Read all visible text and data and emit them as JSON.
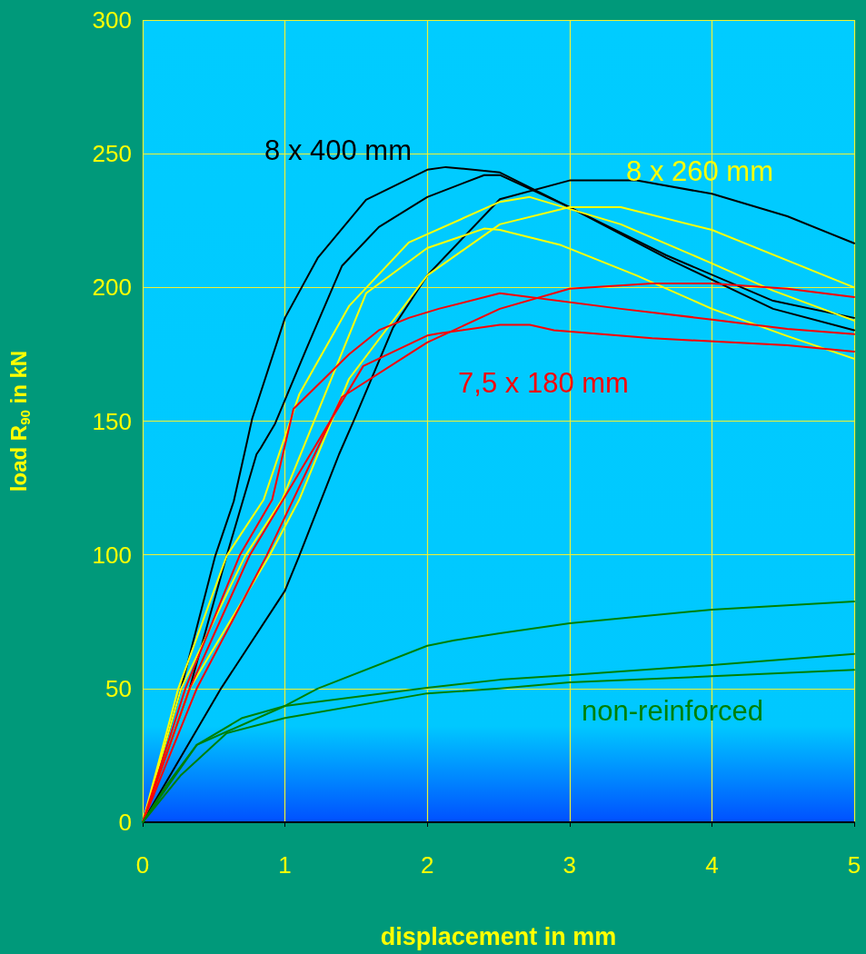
{
  "chart_data": {
    "type": "line",
    "xlabel": "displacement in mm",
    "ylabel": "load R$_{90}$ in kN",
    "xlim": [
      0,
      5
    ],
    "ylim": [
      0,
      300
    ],
    "xticks": [
      0,
      1,
      2,
      3,
      4,
      5
    ],
    "yticks": [
      0,
      50,
      100,
      150,
      200,
      250,
      300
    ],
    "grid": true,
    "marker": "none",
    "line_style": "solid",
    "series": [
      {
        "name": "8 x 400 mm",
        "color": "#000000",
        "x": [
          0,
          0.27,
          0.51,
          0.64,
          0.77,
          1.0,
          1.23,
          1.57,
          2.0,
          2.13,
          2.51,
          3.0,
          3.68,
          4.43,
          5.0
        ],
        "values": [
          0,
          50,
          99.6,
          120,
          151,
          188.6,
          211,
          232.8,
          244,
          245,
          243,
          230,
          212,
          195,
          188.6
        ]
      },
      {
        "color": "#000000",
        "x": [
          0,
          0.33,
          0.59,
          0.8,
          0.83,
          0.93,
          1.15,
          1.4,
          1.66,
          2.0,
          2.4,
          2.51,
          3.0,
          3.68,
          4.43,
          5.0
        ],
        "values": [
          0,
          50,
          99.6,
          137.6,
          140,
          149,
          177,
          208,
          222.6,
          233.8,
          242,
          242,
          230,
          211,
          192,
          184
        ]
      },
      {
        "color": "#000000",
        "x": [
          0,
          0.55,
          1.0,
          1.1,
          1.38,
          1.49,
          1.76,
          2.0,
          2.51,
          3.0,
          3.47,
          4.0,
          4.53,
          5.0
        ],
        "values": [
          0,
          50,
          86.6,
          99.6,
          137.6,
          151,
          185,
          204.5,
          233,
          240,
          240,
          235,
          226.6,
          216.5
        ]
      },
      {
        "name": "8 x 260 mm",
        "color": "#ffff00",
        "x": [
          0,
          0.25,
          0.59,
          0.85,
          1.1,
          1.45,
          1.87,
          2.51,
          2.72,
          3.36,
          4.0,
          4.43,
          5.0
        ],
        "values": [
          0,
          50,
          99.6,
          120.6,
          160,
          193,
          216.8,
          232,
          233.8,
          223.6,
          209,
          198.8,
          187.6
        ]
      },
      {
        "color": "#ffff00",
        "x": [
          0,
          0.33,
          0.89,
          1.1,
          1.45,
          2.0,
          2.51,
          3.0,
          3.36,
          4.0,
          5.0
        ],
        "values": [
          0,
          50,
          99.6,
          120.6,
          165.8,
          204.5,
          223.6,
          230,
          230,
          221.5,
          200
        ]
      },
      {
        "color": "#ffff00",
        "x": [
          0,
          0.27,
          0.72,
          0.98,
          1.57,
          2.0,
          2.4,
          2.51,
          2.94,
          3.47,
          4.0,
          4.53,
          5.0
        ],
        "values": [
          0,
          50,
          99.6,
          120.6,
          197.8,
          214.7,
          222,
          221.5,
          215.8,
          204.5,
          192,
          181.8,
          173.3
        ]
      },
      {
        "name": "7,5 x 180 mm",
        "color": "#ff0000",
        "x": [
          0,
          0.3,
          0.68,
          0.91,
          1.06,
          1.45,
          1.66,
          1.87,
          2.08,
          2.51,
          3.36,
          4.0,
          4.53,
          5.0
        ],
        "values": [
          0,
          50,
          99.6,
          120.6,
          154.6,
          175,
          184,
          188.6,
          192,
          197.8,
          192,
          188,
          184.5,
          182.5
        ]
      },
      {
        "color": "#ff0000",
        "x": [
          0,
          0.38,
          0.87,
          1.4,
          1.87,
          2.0,
          2.51,
          3.0,
          3.58,
          4.0,
          4.53,
          5.0
        ],
        "values": [
          0,
          50,
          99.6,
          159,
          175,
          179.4,
          192,
          199.5,
          201.5,
          201.5,
          199.5,
          196.4
        ]
      },
      {
        "color": "#ff0000",
        "x": [
          0,
          0.33,
          0.75,
          1.55,
          2.0,
          2.08,
          2.51,
          2.72,
          2.89,
          3.58,
          4.53,
          5.0
        ],
        "values": [
          0,
          50,
          99.6,
          170.6,
          182,
          182.8,
          186,
          186,
          184,
          181,
          178.4,
          176
        ]
      },
      {
        "name": "non-reinforced",
        "color": "#008000",
        "x": [
          0,
          0.38,
          1.0,
          1.23,
          2.0,
          2.19,
          2.51,
          3.0,
          4.0,
          5.0
        ],
        "values": [
          0,
          28.9,
          43.5,
          50,
          66,
          68,
          70.7,
          74.4,
          79.5,
          82.6
        ]
      },
      {
        "color": "#008000",
        "x": [
          0,
          0.17,
          0.38,
          0.7,
          1.0,
          2.0,
          2.51,
          3.0,
          4.0,
          5.0
        ],
        "values": [
          0,
          14,
          28.9,
          39,
          43.5,
          50.3,
          53.3,
          55,
          58.8,
          62.9
        ]
      },
      {
        "color": "#008000",
        "x": [
          0,
          0.27,
          0.59,
          1.0,
          2.0,
          2.51,
          3.0,
          4.0,
          5.0
        ],
        "values": [
          0,
          17.7,
          33.3,
          39,
          48.2,
          50,
          52.3,
          54.6,
          57
        ]
      }
    ]
  }
}
